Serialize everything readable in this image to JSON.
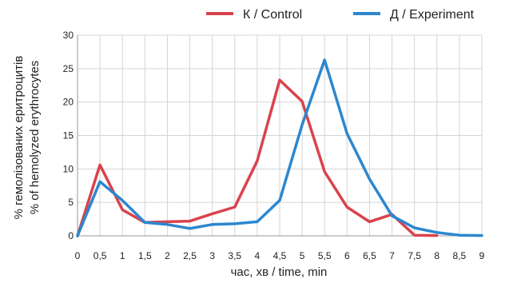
{
  "chart_data": {
    "type": "line",
    "title": "",
    "xlabel": "час, хв / time, min",
    "ylabel_lines": [
      "% гемолізованих еритроцитів",
      "% of hemolyzed erythrocytes"
    ],
    "x": [
      0,
      0.5,
      1,
      1.5,
      2,
      2.5,
      3,
      3.5,
      4,
      4.5,
      5,
      5.5,
      6,
      6.5,
      7,
      7.5,
      8,
      8.5,
      9
    ],
    "x_tick_labels": [
      "0",
      "0,5",
      "1",
      "1,5",
      "2",
      "2,5",
      "3",
      "3,5",
      "4",
      "4,5",
      "5",
      "5,5",
      "6",
      "6,5",
      "7",
      "7,5",
      "8",
      "8,5",
      "9"
    ],
    "y_ticks": [
      0,
      5,
      10,
      15,
      20,
      25,
      30
    ],
    "xlim": [
      0,
      9
    ],
    "ylim": [
      0,
      30
    ],
    "grid": true,
    "legend_position": "top",
    "series": [
      {
        "name": "К / Control",
        "color": "#d9434d",
        "values": [
          0,
          10.6,
          3.9,
          2.0,
          2.1,
          2.2,
          3.3,
          4.3,
          11.2,
          23.3,
          20.1,
          9.6,
          4.3,
          2.1,
          3.2,
          0.1,
          0.05,
          null,
          null
        ]
      },
      {
        "name": "Д / Experiment",
        "color": "#2c87cf",
        "values": [
          0,
          8.1,
          5.3,
          2.0,
          1.7,
          1.1,
          1.7,
          1.8,
          2.1,
          5.3,
          16.6,
          26.3,
          15.3,
          8.5,
          3.0,
          1.2,
          0.5,
          0.1,
          0.05
        ]
      }
    ]
  }
}
